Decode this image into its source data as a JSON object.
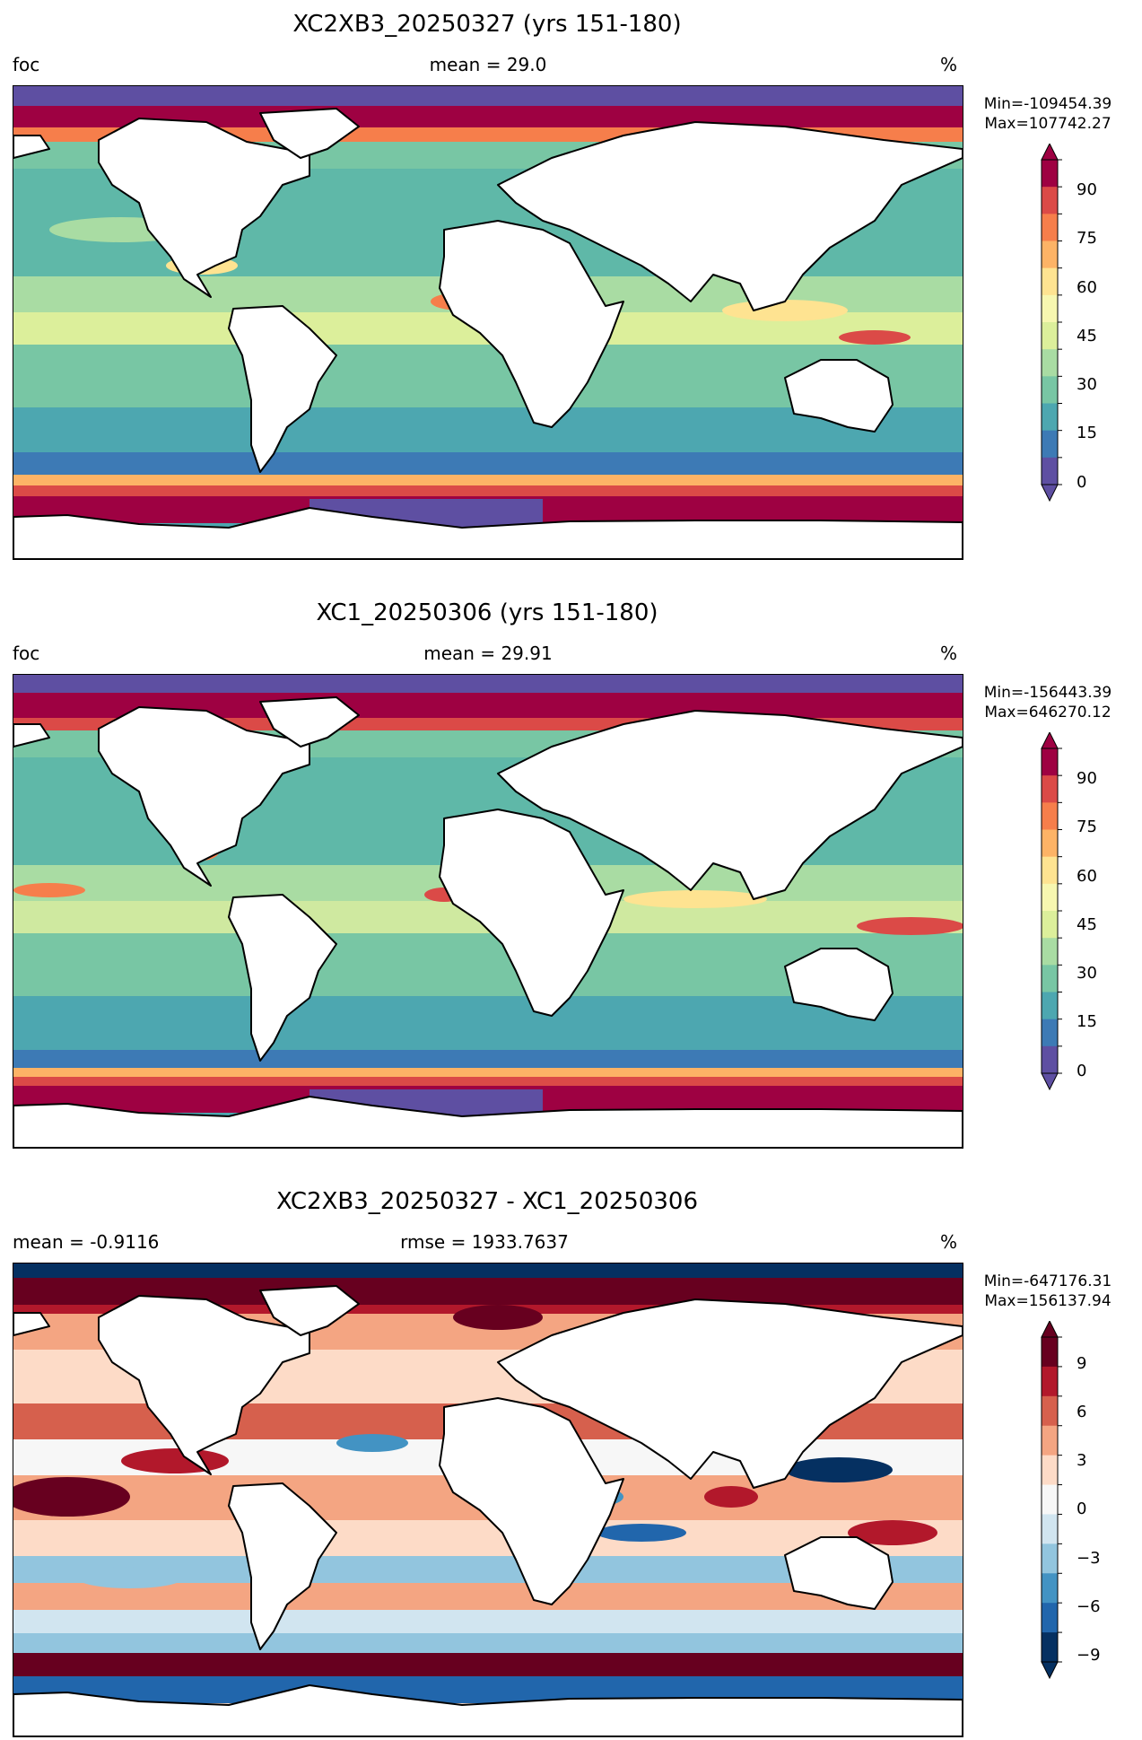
{
  "panels": [
    {
      "title": "XC2XB3_20250327 (yrs 151-180)",
      "left_label": "foc",
      "center_label": "mean = 29.0",
      "right_label": "%",
      "min_text": "Min=-109454.39",
      "max_text": "Max=107742.27",
      "colorbar": {
        "colormap": "Spectral_r",
        "ticks": [
          "90",
          "75",
          "60",
          "45",
          "30",
          "15",
          "0"
        ],
        "range": [
          0,
          100
        ],
        "extend": "both"
      }
    },
    {
      "title": "XC1_20250306 (yrs 151-180)",
      "left_label": "foc",
      "center_label": "mean = 29.91",
      "right_label": "%",
      "min_text": "Min=-156443.39",
      "max_text": "Max=646270.12",
      "colorbar": {
        "colormap": "Spectral_r",
        "ticks": [
          "90",
          "75",
          "60",
          "45",
          "30",
          "15",
          "0"
        ],
        "range": [
          0,
          100
        ],
        "extend": "both"
      }
    },
    {
      "title": "XC2XB3_20250327 - XC1_20250306",
      "left_label": "mean = -0.9116",
      "center_label": "rmse = 1933.7637",
      "right_label": "%",
      "min_text": "Min=-647176.31",
      "max_text": "Max=156137.94",
      "colorbar": {
        "colormap": "RdBu_r",
        "ticks": [
          "9",
          "6",
          "3",
          "0",
          "−3",
          "−6",
          "−9"
        ],
        "range": [
          -10,
          10
        ],
        "extend": "both"
      }
    }
  ],
  "colors": {
    "land": "#ffffff",
    "coastline": "#000000",
    "spectral": [
      "#5e4fa2",
      "#3d7ab5",
      "#4da7b0",
      "#78c6a4",
      "#a9dca3",
      "#dcef9b",
      "#f7f7b0",
      "#fee391",
      "#fdb366",
      "#f67e4b",
      "#db4a47",
      "#9e0142"
    ],
    "rdbu": [
      "#053061",
      "#2166ac",
      "#4393c3",
      "#92c5de",
      "#d1e5f0",
      "#f7f7f7",
      "#fddbc7",
      "#f4a582",
      "#d6604d",
      "#b2182b",
      "#67001f"
    ]
  }
}
